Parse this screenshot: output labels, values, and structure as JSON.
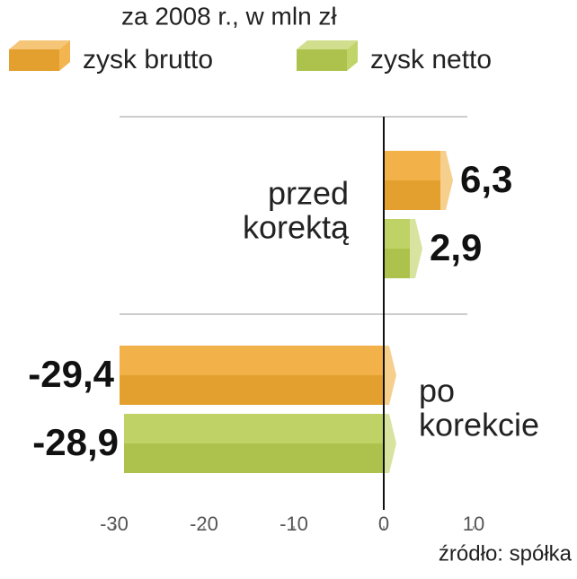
{
  "chart_data": {
    "type": "bar",
    "orientation": "horizontal",
    "title": "za 2008 r., w mln zł",
    "source": "źródło: spółka",
    "categories": [
      [
        "przed",
        "korektą"
      ],
      [
        "po",
        "korekcie"
      ]
    ],
    "series": [
      {
        "name": "zysk brutto",
        "color": "#f0a830",
        "values": [
          6.3,
          -29.4
        ],
        "value_labels": [
          "6,3",
          "-29,4"
        ]
      },
      {
        "name": "zysk netto",
        "color": "#b6cc50",
        "values": [
          2.9,
          -28.9
        ],
        "value_labels": [
          "2,9",
          "-28,9"
        ]
      }
    ],
    "xlim": [
      -30,
      10
    ],
    "xticks": [
      -30,
      -20,
      -10,
      0,
      10
    ]
  }
}
